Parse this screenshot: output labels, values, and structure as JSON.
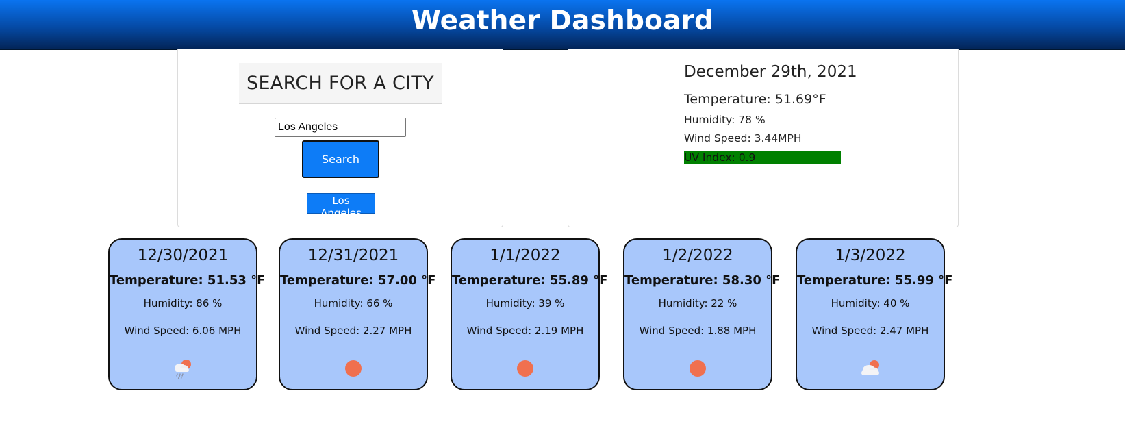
{
  "header": {
    "title": "Weather Dashboard"
  },
  "search": {
    "heading": "SEARCH FOR A CITY",
    "input_value": "Los Angeles",
    "button_label": "Search",
    "history": [
      "Los Angeles"
    ]
  },
  "current": {
    "date": "December 29th, 2021",
    "temperature": "Temperature: 51.69°F",
    "humidity": "Humidity: 78 %",
    "wind": "Wind Speed: 3.44MPH",
    "uv": "UV Index: 0.9",
    "uv_color": "#008000"
  },
  "forecast": [
    {
      "date": "12/30/2021",
      "temperature": "Temperature: 51.53 °F",
      "humidity": "Humidity: 86 %",
      "wind": "Wind Speed: 6.06 MPH",
      "icon": "rain-with-sun-icon"
    },
    {
      "date": "12/31/2021",
      "temperature": "Temperature: 57.00 °F",
      "humidity": "Humidity: 66 %",
      "wind": "Wind Speed: 2.27 MPH",
      "icon": "sun-icon"
    },
    {
      "date": "1/1/2022",
      "temperature": "Temperature: 55.89 °F",
      "humidity": "Humidity: 39 %",
      "wind": "Wind Speed: 2.19 MPH",
      "icon": "sun-icon"
    },
    {
      "date": "1/2/2022",
      "temperature": "Temperature: 58.30 °F",
      "humidity": "Humidity: 22 %",
      "wind": "Wind Speed: 1.88 MPH",
      "icon": "sun-icon"
    },
    {
      "date": "1/3/2022",
      "temperature": "Temperature: 55.99 °F",
      "humidity": "Humidity: 40 %",
      "wind": "Wind Speed: 2.47 MPH",
      "icon": "cloud-with-sun-icon"
    }
  ],
  "colors": {
    "header_top": "#0a74f0",
    "header_bottom": "#032456",
    "button": "#0d7cf7",
    "card_background": "#a8c7fb",
    "sun": "#f0704f"
  }
}
